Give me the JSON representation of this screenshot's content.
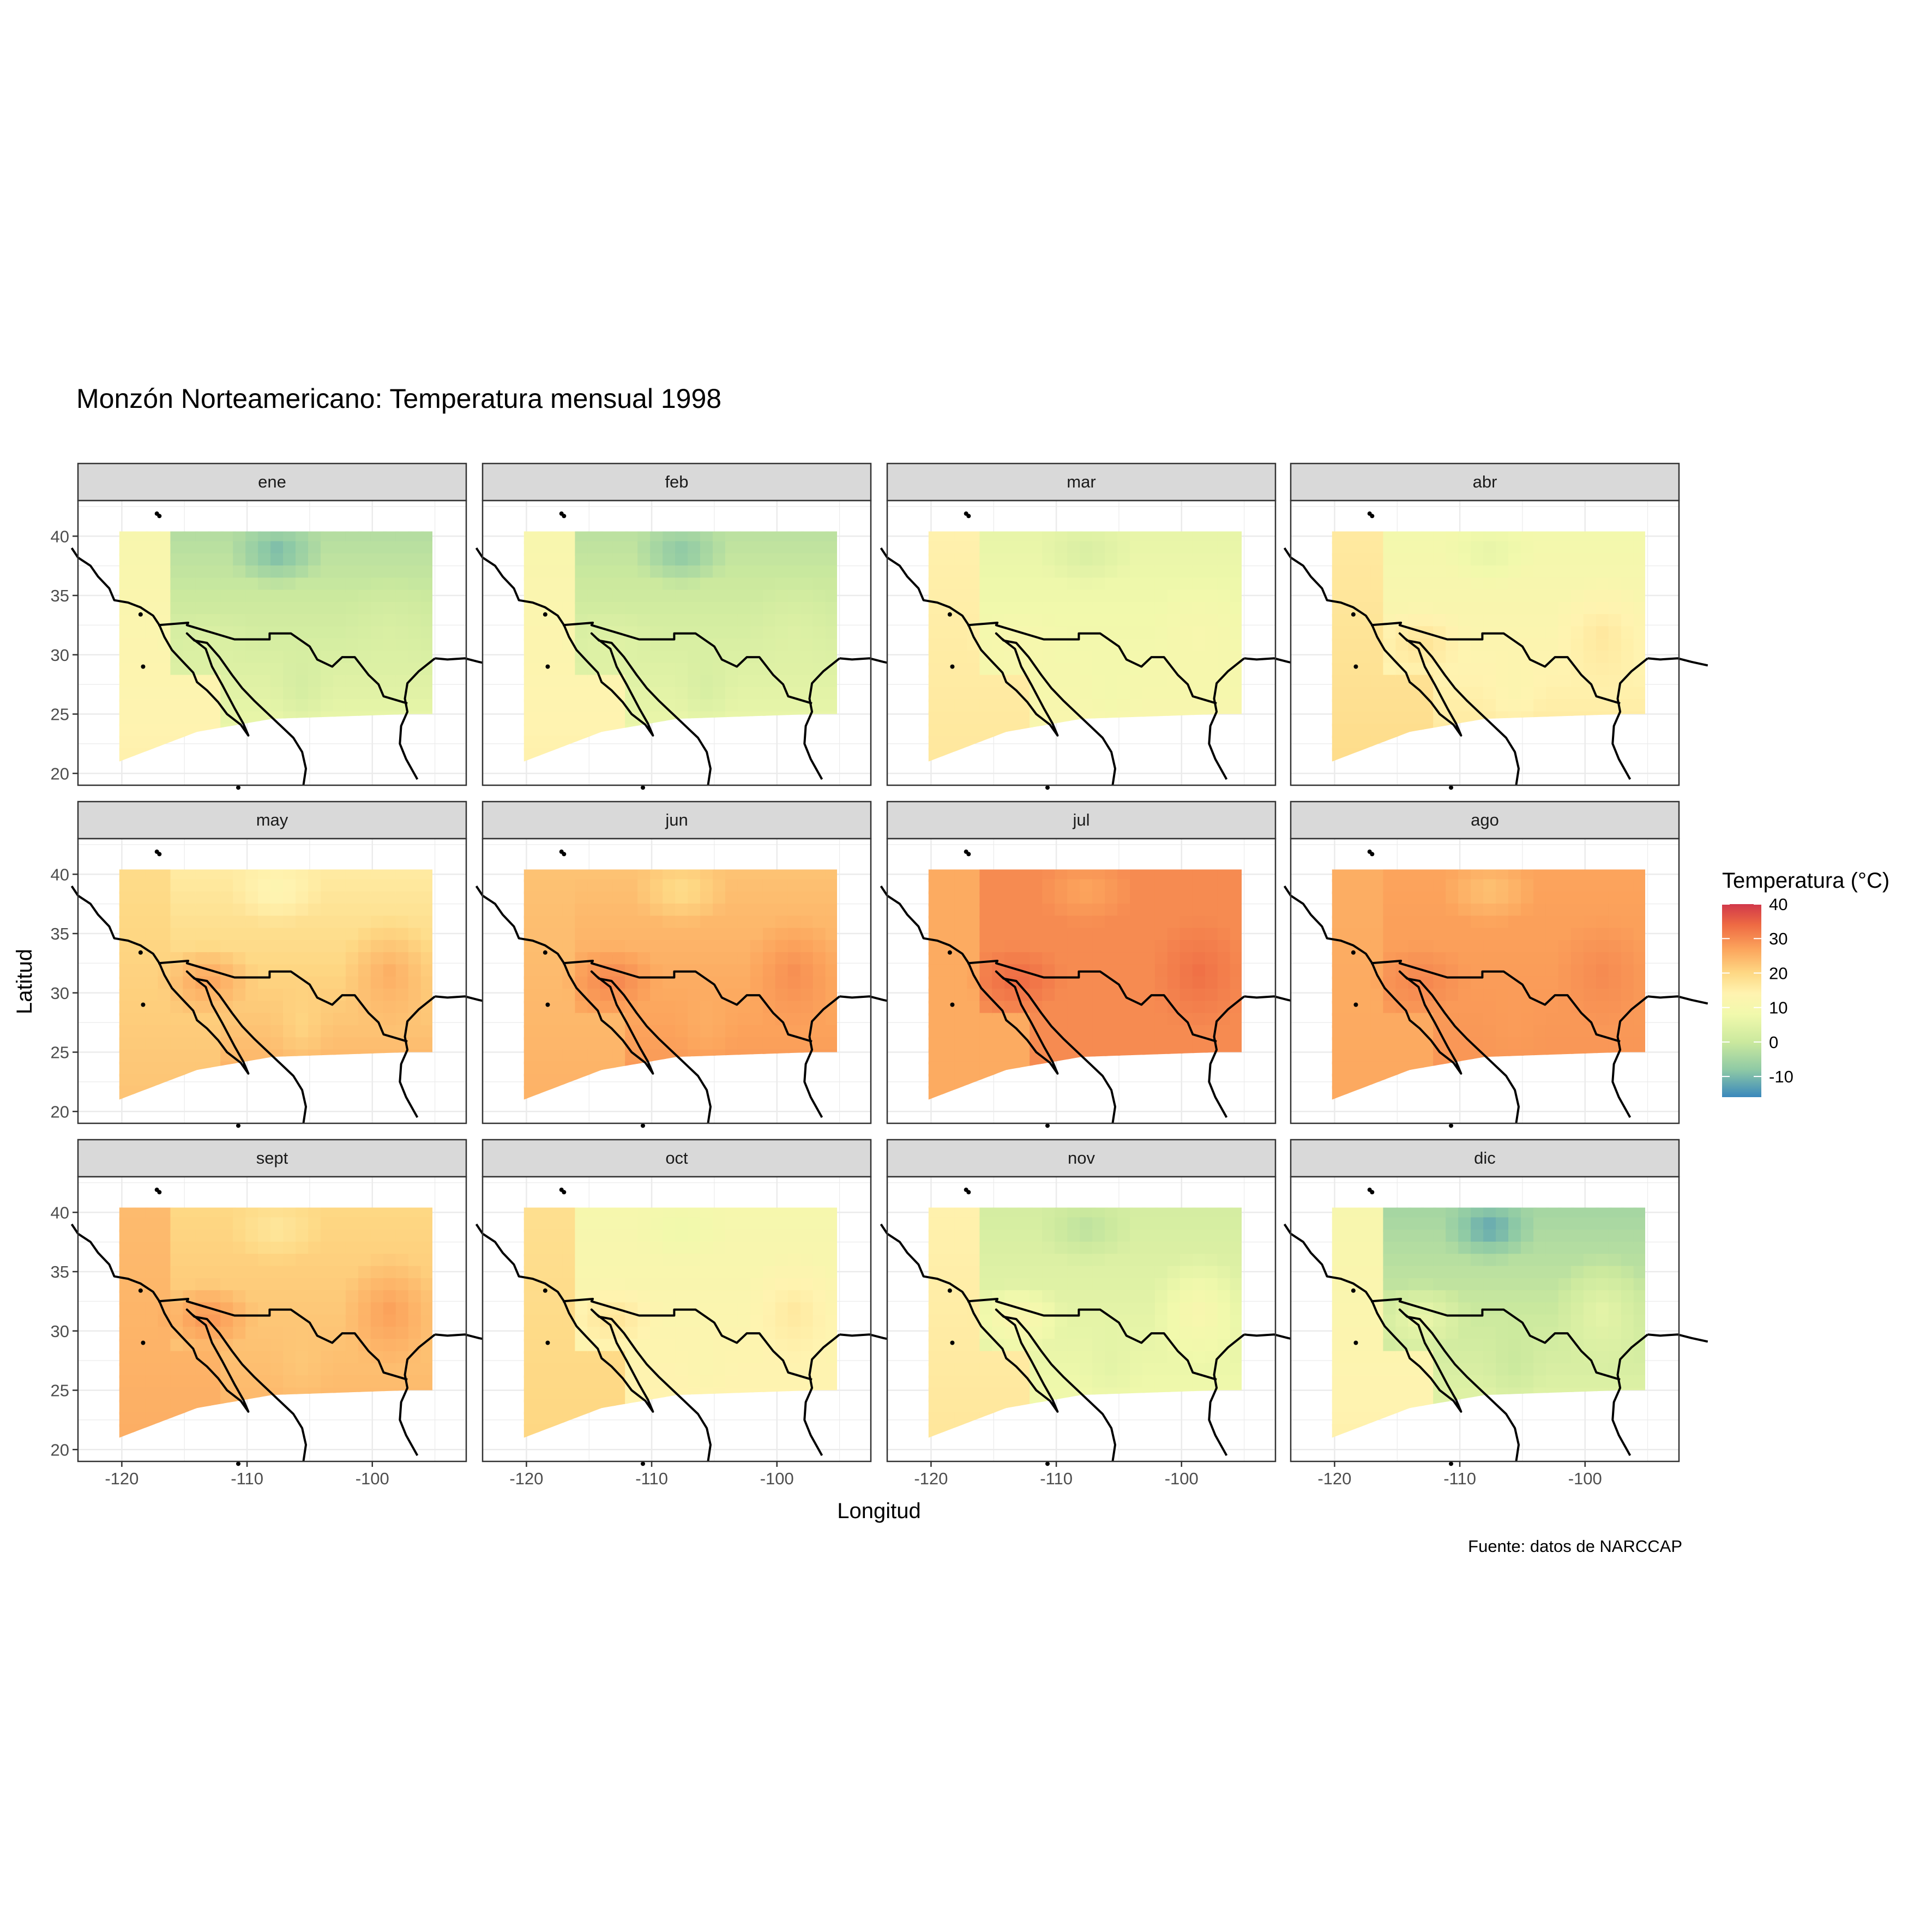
{
  "title": "Monzón Norteamericano: Temperatura mensual 1998",
  "caption": "Fuente: datos de NARCCAP",
  "x_axis_title": "Longitud",
  "y_axis_title": "Latitud",
  "legend": {
    "title": "Temperatura (°C)",
    "labels": [
      "40",
      "30",
      "20",
      "10",
      "0",
      "-10"
    ],
    "stops": [
      {
        "value": -16,
        "color": "#3a88bc"
      },
      {
        "value": -8,
        "color": "#8fcaa5"
      },
      {
        "value": 0,
        "color": "#cbe99e"
      },
      {
        "value": 8,
        "color": "#f1f9ac"
      },
      {
        "value": 14,
        "color": "#fff3b0"
      },
      {
        "value": 20,
        "color": "#fed884"
      },
      {
        "value": 27,
        "color": "#fca45c"
      },
      {
        "value": 34,
        "color": "#ee6a43"
      },
      {
        "value": 40,
        "color": "#d1384a"
      }
    ]
  },
  "chart_data": {
    "type": "heatmap",
    "facet_by": "month",
    "xlim": [
      -123.5,
      -92.5
    ],
    "ylim": [
      19,
      43
    ],
    "x_ticks": [
      "-120",
      "-110",
      "-100"
    ],
    "x_tick_values": [
      -120,
      -110,
      -100
    ],
    "y_ticks": [
      "40",
      "35",
      "30",
      "25",
      "20"
    ],
    "y_tick_values": [
      40,
      35,
      30,
      25,
      20
    ],
    "grid": true,
    "legend_position": "right",
    "color_scale": [
      -16,
      40
    ],
    "panels": [
      {
        "label": "ene",
        "north": -3,
        "south": 8,
        "coast": 18,
        "hot": 4,
        "cold": -12
      },
      {
        "label": "feb",
        "north": -2,
        "south": 8,
        "coast": 18,
        "hot": 5,
        "cold": -10
      },
      {
        "label": "mar",
        "north": 6,
        "south": 12,
        "coast": 19,
        "hot": 12,
        "cold": 2
      },
      {
        "label": "abr",
        "north": 9,
        "south": 17,
        "coast": 20,
        "hot": 20,
        "cold": 5
      },
      {
        "label": "may",
        "north": 16,
        "south": 26,
        "coast": 21,
        "hot": 30,
        "cold": 12
      },
      {
        "label": "jun",
        "north": 23,
        "south": 29,
        "coast": 23,
        "hot": 33,
        "cold": 18
      },
      {
        "label": "jul",
        "north": 30,
        "south": 30,
        "coast": 24,
        "hot": 36,
        "cold": 26
      },
      {
        "label": "ago",
        "north": 27,
        "south": 29,
        "coast": 25,
        "hot": 32,
        "cold": 22
      },
      {
        "label": "sept",
        "north": 20,
        "south": 25,
        "coast": 26,
        "hot": 32,
        "cold": 16
      },
      {
        "label": "oct",
        "north": 10,
        "south": 15,
        "coast": 23,
        "hot": 20,
        "cold": 7
      },
      {
        "label": "nov",
        "north": 2,
        "south": 9,
        "coast": 21,
        "hot": 16,
        "cold": -3
      },
      {
        "label": "dic",
        "north": -5,
        "south": 6,
        "coast": 19,
        "hot": 10,
        "cold": -14
      }
    ]
  }
}
